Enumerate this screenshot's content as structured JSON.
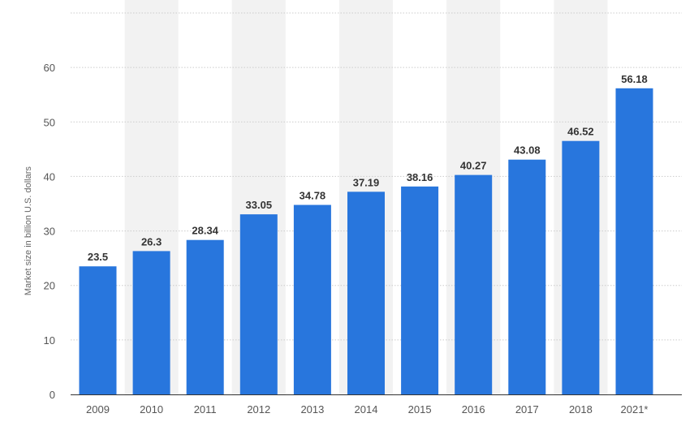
{
  "chart_data": {
    "type": "bar",
    "categories": [
      "2009",
      "2010",
      "2011",
      "2012",
      "2013",
      "2014",
      "2015",
      "2016",
      "2017",
      "2018",
      "2021*"
    ],
    "values": [
      23.5,
      26.3,
      28.34,
      33.05,
      34.78,
      37.19,
      38.16,
      40.27,
      43.08,
      46.52,
      56.18
    ],
    "value_labels": [
      "23.5",
      "26.3",
      "28.34",
      "33.05",
      "34.78",
      "37.19",
      "38.16",
      "40.27",
      "43.08",
      "46.52",
      "56.18"
    ],
    "title": "",
    "xlabel": "",
    "ylabel": "Market size in billion U.S. dollars",
    "ylim": [
      0,
      70
    ],
    "yticks": [
      0,
      10,
      20,
      30,
      40,
      50,
      60
    ],
    "ytick_labels": [
      "0",
      "10",
      "20",
      "30",
      "40",
      "50",
      "60"
    ],
    "grid": true,
    "legend": "none",
    "colors": {
      "bar": "#2876dd",
      "band": "#f2f2f2",
      "grid": "#cccccc",
      "axis": "#333333"
    }
  }
}
